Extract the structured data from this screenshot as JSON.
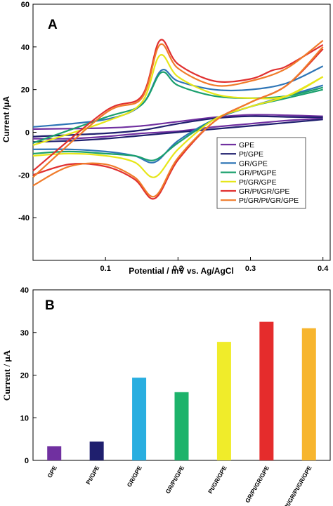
{
  "chart_data": [
    {
      "type": "line",
      "panel_label": "A",
      "xlabel": "Potential / mV vs. Ag/AgCl",
      "ylabel": "Current /μA",
      "xlim": [
        0.0,
        0.41
      ],
      "ylim": [
        -60,
        60
      ],
      "xticks": [
        0.1,
        0.2,
        0.3,
        0.4
      ],
      "yticks": [
        -40,
        -20,
        0,
        20,
        40,
        60
      ],
      "legend_position": "bottom-right",
      "series": [
        {
          "name": "GPE",
          "color": "#7030a0",
          "forward": [
            [
              0.0,
              1.5
            ],
            [
              0.1,
              2
            ],
            [
              0.15,
              3
            ],
            [
              0.2,
              5
            ],
            [
              0.25,
              7
            ],
            [
              0.3,
              8.2
            ],
            [
              0.35,
              8
            ],
            [
              0.4,
              7.5
            ]
          ],
          "reverse": [
            [
              0.4,
              6.5
            ],
            [
              0.35,
              5.5
            ],
            [
              0.3,
              4
            ],
            [
              0.25,
              2.5
            ],
            [
              0.2,
              0.5
            ],
            [
              0.15,
              -0.5
            ],
            [
              0.1,
              -2
            ],
            [
              0.05,
              -3
            ],
            [
              0.0,
              -3
            ]
          ]
        },
        {
          "name": "Pt/GPE",
          "color": "#1f1f6e",
          "forward": [
            [
              0.0,
              -2
            ],
            [
              0.1,
              -0.5
            ],
            [
              0.15,
              1
            ],
            [
              0.2,
              4
            ],
            [
              0.25,
              6.5
            ],
            [
              0.3,
              7.5
            ],
            [
              0.35,
              7.2
            ],
            [
              0.4,
              7
            ]
          ],
          "reverse": [
            [
              0.4,
              6
            ],
            [
              0.35,
              4.5
            ],
            [
              0.3,
              3
            ],
            [
              0.25,
              1.5
            ],
            [
              0.2,
              0
            ],
            [
              0.15,
              -1.5
            ],
            [
              0.1,
              -3
            ],
            [
              0.05,
              -4
            ],
            [
              0.0,
              -4.5
            ]
          ]
        },
        {
          "name": "GR/GPE",
          "color": "#2e75b6",
          "forward": [
            [
              0.0,
              2.5
            ],
            [
              0.1,
              6
            ],
            [
              0.15,
              13
            ],
            [
              0.177,
              29
            ],
            [
              0.2,
              24
            ],
            [
              0.25,
              20
            ],
            [
              0.3,
              20
            ],
            [
              0.35,
              23
            ],
            [
              0.4,
              31
            ]
          ],
          "reverse": [
            [
              0.4,
              22
            ],
            [
              0.35,
              17
            ],
            [
              0.3,
              12
            ],
            [
              0.25,
              6
            ],
            [
              0.2,
              -4
            ],
            [
              0.168,
              -14
            ],
            [
              0.14,
              -11
            ],
            [
              0.1,
              -9
            ],
            [
              0.05,
              -8
            ],
            [
              0.0,
              -8
            ]
          ]
        },
        {
          "name": "GR/Pt/GPE",
          "color": "#1aa06d",
          "forward": [
            [
              0.0,
              -5
            ],
            [
              0.1,
              7
            ],
            [
              0.15,
              13
            ],
            [
              0.177,
              28
            ],
            [
              0.2,
              22
            ],
            [
              0.25,
              17
            ],
            [
              0.3,
              16
            ],
            [
              0.35,
              17
            ],
            [
              0.4,
              21
            ]
          ],
          "reverse": [
            [
              0.4,
              20
            ],
            [
              0.35,
              16
            ],
            [
              0.3,
              12
            ],
            [
              0.25,
              6
            ],
            [
              0.2,
              -5
            ],
            [
              0.168,
              -13
            ],
            [
              0.14,
              -11
            ],
            [
              0.1,
              -10
            ],
            [
              0.05,
              -9
            ],
            [
              0.0,
              -10
            ]
          ]
        },
        {
          "name": "Pt/GR/GPE",
          "color": "#e6e619",
          "forward": [
            [
              0.0,
              -6
            ],
            [
              0.1,
              5
            ],
            [
              0.15,
              14
            ],
            [
              0.175,
              36
            ],
            [
              0.2,
              26
            ],
            [
              0.25,
              18
            ],
            [
              0.3,
              16
            ],
            [
              0.35,
              17
            ],
            [
              0.4,
              26
            ]
          ],
          "reverse": [
            [
              0.4,
              26
            ],
            [
              0.35,
              17
            ],
            [
              0.3,
              12
            ],
            [
              0.25,
              6
            ],
            [
              0.2,
              -8
            ],
            [
              0.168,
              -21
            ],
            [
              0.14,
              -14
            ],
            [
              0.1,
              -11
            ],
            [
              0.05,
              -10
            ],
            [
              0.0,
              -11
            ]
          ]
        },
        {
          "name": "GR/Pt/GR/GPE",
          "color": "#e03030",
          "forward": [
            [
              0.0,
              -18
            ],
            [
              0.1,
              10
            ],
            [
              0.15,
              17
            ],
            [
              0.175,
              43
            ],
            [
              0.2,
              32
            ],
            [
              0.25,
              24
            ],
            [
              0.3,
              25
            ],
            [
              0.33,
              29
            ],
            [
              0.35,
              31
            ],
            [
              0.4,
              41
            ]
          ],
          "reverse": [
            [
              0.4,
              39
            ],
            [
              0.35,
              22
            ],
            [
              0.3,
              14
            ],
            [
              0.25,
              5
            ],
            [
              0.2,
              -13
            ],
            [
              0.168,
              -31
            ],
            [
              0.14,
              -22
            ],
            [
              0.1,
              -16
            ],
            [
              0.05,
              -15
            ],
            [
              0.0,
              -20
            ]
          ]
        },
        {
          "name": "Pt/GR/Pt/GR/GPE",
          "color": "#f07b2a",
          "forward": [
            [
              0.0,
              -21
            ],
            [
              0.1,
              9
            ],
            [
              0.15,
              16
            ],
            [
              0.175,
              41
            ],
            [
              0.2,
              30
            ],
            [
              0.25,
              22
            ],
            [
              0.3,
              24
            ],
            [
              0.35,
              30
            ],
            [
              0.4,
              43
            ]
          ],
          "reverse": [
            [
              0.4,
              40
            ],
            [
              0.35,
              22
            ],
            [
              0.3,
              14
            ],
            [
              0.25,
              5
            ],
            [
              0.2,
              -12
            ],
            [
              0.168,
              -30
            ],
            [
              0.14,
              -21
            ],
            [
              0.1,
              -15
            ],
            [
              0.05,
              -16
            ],
            [
              0.0,
              -25
            ]
          ]
        }
      ]
    },
    {
      "type": "bar",
      "panel_label": "B",
      "xlabel": "",
      "ylabel": "Current / μA",
      "ylim": [
        0,
        40
      ],
      "yticks": [
        0,
        10,
        20,
        30,
        40
      ],
      "categories": [
        "GPE",
        "Pt/GPE",
        "GR/GPE",
        "GR/Pt/GPE",
        "Pt/GR/GPE",
        "GR/Pt/GR/GPE",
        "Pt/GR/Pt/GR/GPE"
      ],
      "values": [
        3.3,
        4.4,
        19.4,
        16.0,
        27.8,
        32.5,
        31.0
      ],
      "colors": [
        "#7030a0",
        "#1f1f6e",
        "#29aee0",
        "#1db36b",
        "#f0ec2a",
        "#e52c2c",
        "#f7b52e"
      ]
    }
  ]
}
